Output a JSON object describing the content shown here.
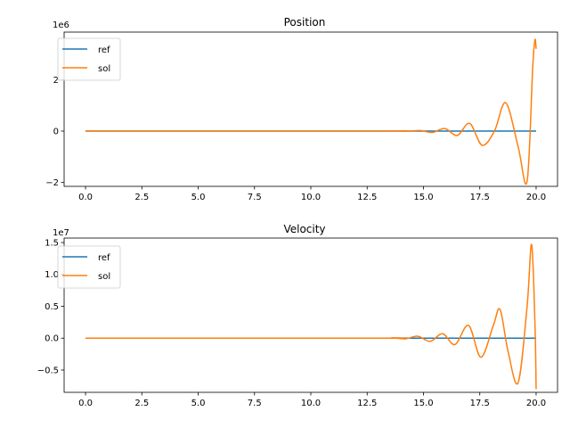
{
  "chart_data": [
    {
      "type": "line",
      "title": "Position",
      "xlabel": "",
      "ylabel": "",
      "y_offset_text": "1e6",
      "x_ticks": [
        "0.0",
        "2.5",
        "5.0",
        "7.5",
        "10.0",
        "12.5",
        "15.0",
        "17.5",
        "20.0"
      ],
      "y_ticks": [
        "−2",
        "0",
        "2"
      ],
      "xlim": [
        -0.95,
        20.95
      ],
      "ylim": [
        -2.15,
        3.85
      ],
      "legend_position": "top-left",
      "series": [
        {
          "name": "ref",
          "color": "#1f77b4",
          "x": [
            0,
            20
          ],
          "y": [
            0,
            0
          ]
        },
        {
          "name": "sol",
          "color": "#ff7f0e",
          "x": [
            0,
            13.0,
            13.8,
            14.3,
            14.85,
            15.4,
            15.95,
            16.5,
            17.05,
            17.6,
            18.15,
            18.65,
            19.2,
            19.6,
            19.85,
            19.95,
            20.0
          ],
          "y": [
            0,
            0,
            0.005,
            -0.01,
            0.02,
            -0.05,
            0.1,
            -0.17,
            0.3,
            -0.55,
            0.0,
            1.1,
            -0.6,
            -1.95,
            2.5,
            3.55,
            3.2
          ]
        }
      ]
    },
    {
      "type": "line",
      "title": "Velocity",
      "xlabel": "",
      "ylabel": "",
      "y_offset_text": "1e7",
      "x_ticks": [
        "0.0",
        "2.5",
        "5.0",
        "7.5",
        "10.0",
        "12.5",
        "15.0",
        "17.5",
        "20.0"
      ],
      "y_ticks": [
        "−0.5",
        "0.0",
        "0.5",
        "1.0",
        "1.5"
      ],
      "xlim": [
        -0.95,
        20.95
      ],
      "ylim": [
        -0.85,
        1.57
      ],
      "legend_position": "top-left",
      "series": [
        {
          "name": "ref",
          "color": "#1f77b4",
          "x": [
            0,
            20
          ],
          "y": [
            0,
            0
          ]
        },
        {
          "name": "sol",
          "color": "#ff7f0e",
          "x": [
            0,
            13.0,
            13.6,
            14.2,
            14.75,
            15.3,
            15.85,
            16.4,
            17.0,
            17.55,
            18.1,
            18.4,
            18.75,
            19.2,
            19.6,
            19.8,
            19.95,
            20.0
          ],
          "y": [
            0,
            0,
            0.005,
            -0.01,
            0.03,
            -0.05,
            0.07,
            -0.1,
            0.2,
            -0.3,
            0.2,
            0.45,
            -0.2,
            -0.7,
            0.5,
            1.47,
            0.2,
            -0.8
          ]
        }
      ]
    }
  ]
}
